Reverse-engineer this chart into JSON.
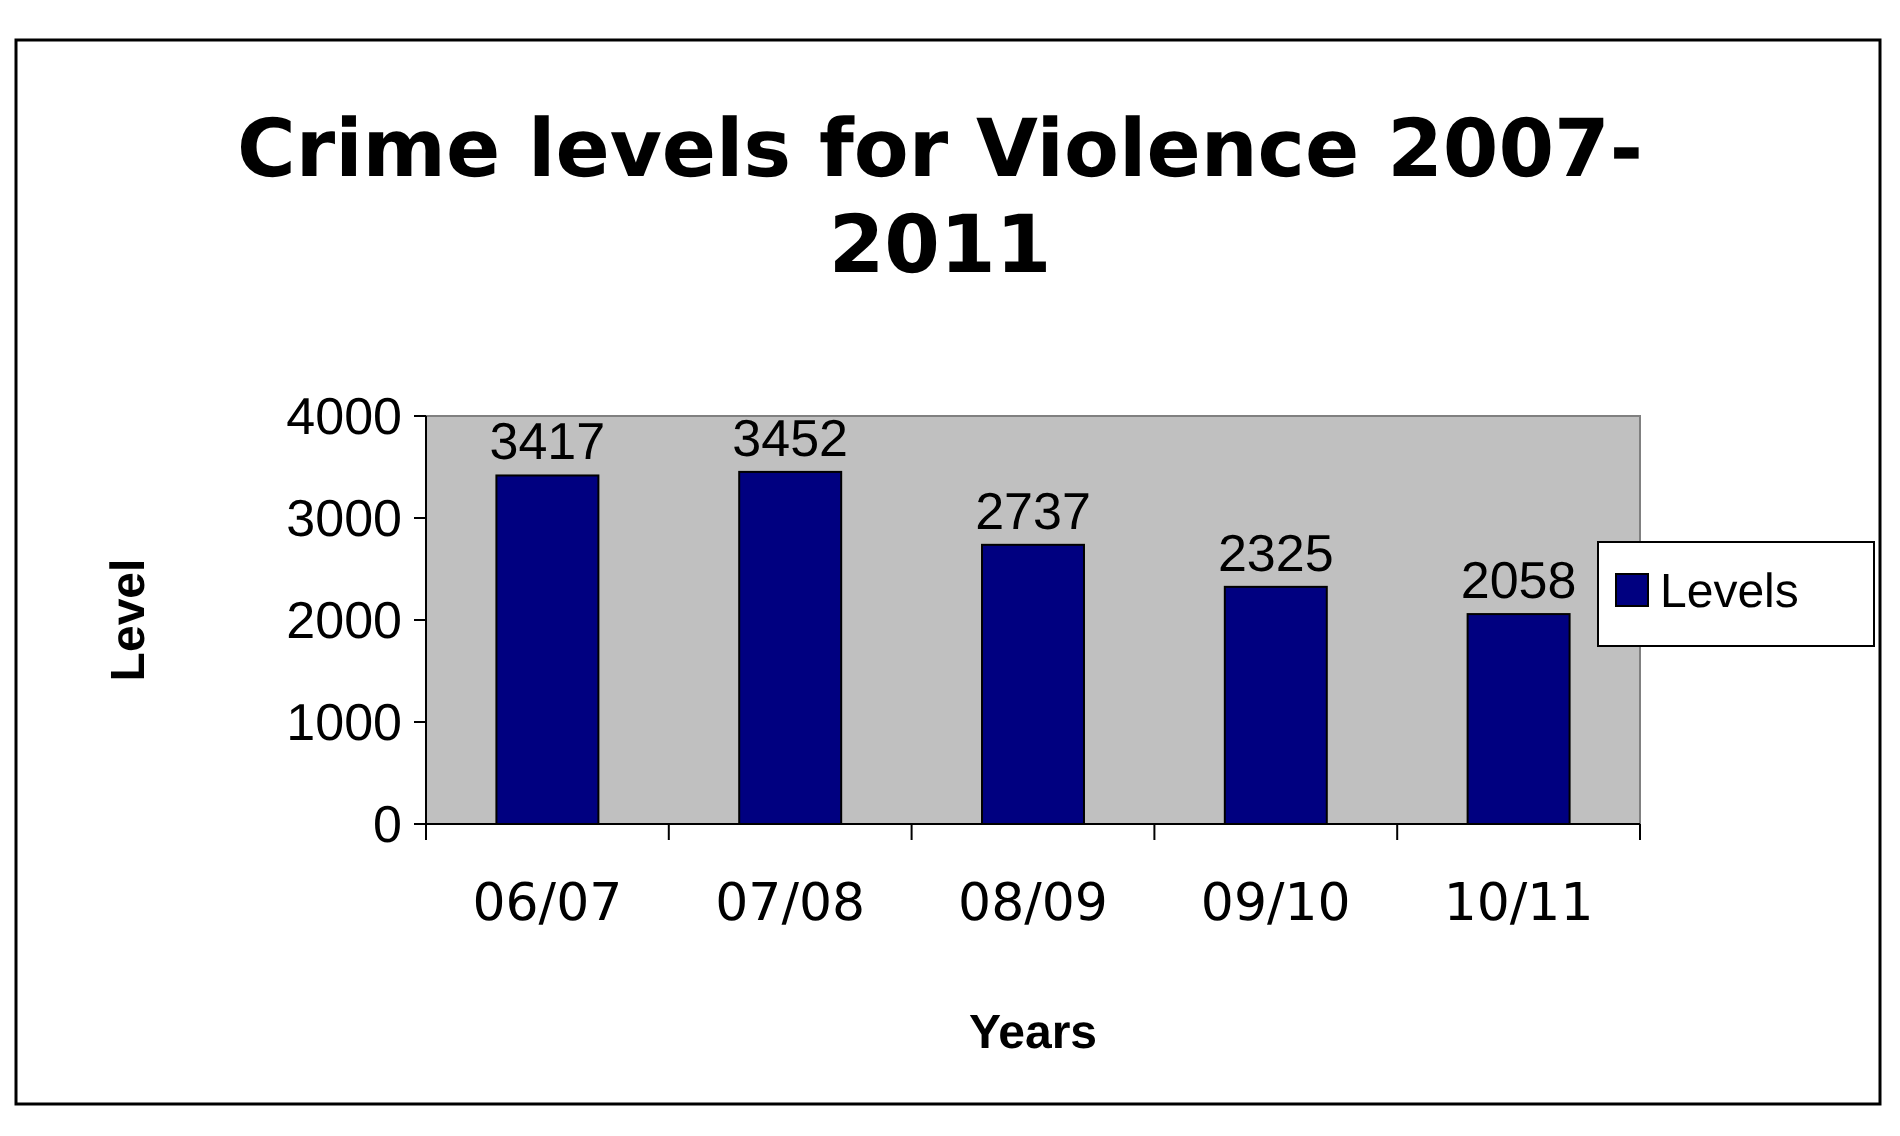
{
  "chart_data": {
    "type": "bar",
    "title": "Crime levels for Violence 2007-2011",
    "xlabel": "Years",
    "ylabel": "Level",
    "categories": [
      "06/07",
      "07/08",
      "08/09",
      "09/10",
      "10/11"
    ],
    "series": [
      {
        "name": "Levels",
        "color": "#000080",
        "values": [
          3417,
          3452,
          2737,
          2325,
          2058
        ]
      }
    ],
    "ylim": [
      0,
      4000
    ],
    "yticks": [
      0,
      1000,
      2000,
      3000,
      4000
    ],
    "data_labels": true,
    "legend": "right",
    "grid": false
  }
}
